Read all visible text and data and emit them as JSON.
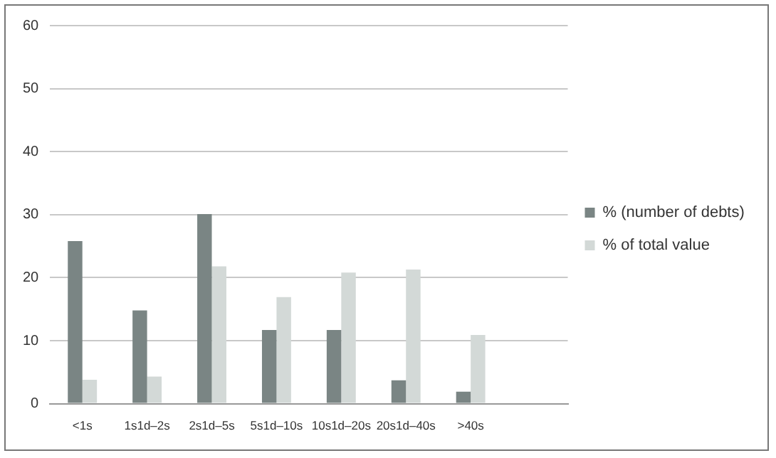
{
  "chart_data": {
    "type": "bar",
    "categories": [
      "<1s",
      "1s1d–2s",
      "2s1d–5s",
      "5s1d–10s",
      "10s1d–20s",
      "20s1d–40s",
      ">40s",
      null
    ],
    "series": [
      {
        "name": "% (number of debts)",
        "color": "#7a8584",
        "values": [
          25.8,
          14.8,
          30.1,
          11.7,
          11.7,
          3.7,
          1.9,
          null
        ]
      },
      {
        "name": "% of total value",
        "color": "#d3d9d7",
        "values": [
          3.8,
          4.3,
          21.8,
          16.9,
          20.8,
          21.3,
          10.9,
          null
        ]
      }
    ],
    "ylim": [
      0,
      60
    ],
    "yticks": [
      0,
      10,
      20,
      30,
      40,
      50,
      60
    ],
    "grid": "y",
    "legend": "right"
  }
}
